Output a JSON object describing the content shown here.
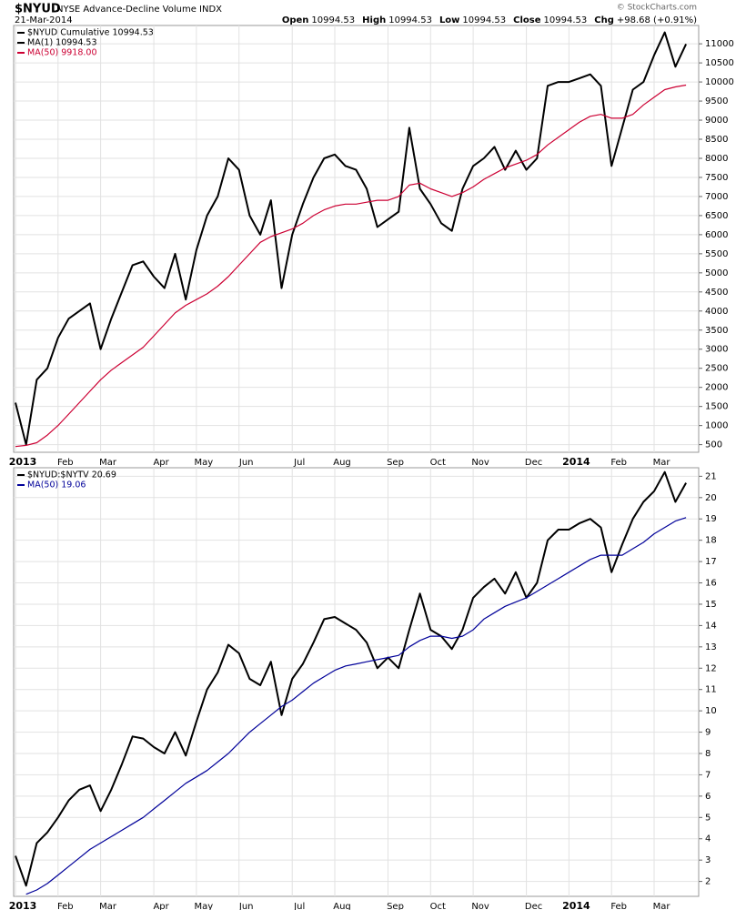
{
  "header": {
    "symbol": "$NYUD",
    "name": "NYSE Advance-Decline Volume INDX",
    "date": "21-Mar-2014",
    "credit": "© StockCharts.com",
    "quote": [
      {
        "label": "Open",
        "value": "10994.53"
      },
      {
        "label": "High",
        "value": "10994.53"
      },
      {
        "label": "Low",
        "value": "10994.53"
      },
      {
        "label": "Close",
        "value": "10994.53"
      },
      {
        "label": "Chg",
        "value": "+98.68 (+0.91%)"
      }
    ]
  },
  "chart_data": [
    {
      "type": "line",
      "extra_legend": {
        "name": "MA(1) 10994.53",
        "color": "#000000"
      },
      "categories": [
        "2013",
        null,
        null,
        null,
        "Feb",
        null,
        null,
        null,
        "Mar",
        null,
        null,
        null,
        null,
        "Apr",
        null,
        null,
        null,
        "May",
        null,
        null,
        null,
        "Jun",
        null,
        null,
        null,
        null,
        "Jul",
        null,
        null,
        null,
        "Aug",
        null,
        null,
        null,
        null,
        "Sep",
        null,
        null,
        null,
        "Oct",
        null,
        null,
        null,
        "Nov",
        null,
        null,
        null,
        null,
        "Dec",
        null,
        null,
        null,
        "2014",
        null,
        null,
        null,
        "Feb",
        null,
        null,
        null,
        "Mar",
        null,
        null,
        null
      ],
      "series": [
        {
          "name": "$NYUD Cumulative 10994.53",
          "color": "#000000",
          "values": [
            1600,
            500,
            2200,
            2500,
            3300,
            3800,
            4000,
            4200,
            3000,
            3800,
            4500,
            5200,
            5300,
            4900,
            4600,
            5500,
            4300,
            5600,
            6500,
            7000,
            8000,
            7700,
            6500,
            6000,
            6900,
            4600,
            6000,
            6800,
            7500,
            8000,
            8100,
            7800,
            7700,
            7200,
            6200,
            6400,
            6600,
            8800,
            7200,
            6800,
            6300,
            6100,
            7200,
            7800,
            8000,
            8300,
            7700,
            8200,
            7700,
            8000,
            9900,
            10000,
            10000,
            10100,
            10200,
            9900,
            7800,
            8800,
            9800,
            10000,
            10700,
            11300,
            10400,
            10994.53
          ]
        },
        {
          "name": "MA(50) 9918.00",
          "color": "#cc0033",
          "values": [
            450,
            480,
            550,
            750,
            1000,
            1300,
            1600,
            1900,
            2200,
            2450,
            2650,
            2850,
            3050,
            3350,
            3650,
            3950,
            4150,
            4300,
            4450,
            4650,
            4900,
            5200,
            5500,
            5800,
            5950,
            6050,
            6150,
            6300,
            6500,
            6650,
            6750,
            6800,
            6800,
            6850,
            6900,
            6900,
            7000,
            7300,
            7350,
            7200,
            7100,
            7000,
            7100,
            7250,
            7450,
            7600,
            7750,
            7850,
            7950,
            8100,
            8350,
            8550,
            8750,
            8950,
            9100,
            9150,
            9050,
            9050,
            9150,
            9400,
            9600,
            9800,
            9870,
            9918
          ]
        }
      ],
      "ylim": [
        300,
        11480
      ],
      "yticks": [
        500,
        1000,
        1500,
        2000,
        2500,
        3000,
        3500,
        4000,
        4500,
        5000,
        5500,
        6000,
        6500,
        7000,
        7500,
        8000,
        8500,
        9000,
        9500,
        10000,
        10500,
        11000
      ],
      "grid": true
    },
    {
      "type": "line",
      "categories": [
        "2013",
        null,
        null,
        null,
        "Feb",
        null,
        null,
        null,
        "Mar",
        null,
        null,
        null,
        null,
        "Apr",
        null,
        null,
        null,
        "May",
        null,
        null,
        null,
        "Jun",
        null,
        null,
        null,
        null,
        "Jul",
        null,
        null,
        null,
        "Aug",
        null,
        null,
        null,
        null,
        "Sep",
        null,
        null,
        null,
        "Oct",
        null,
        null,
        null,
        "Nov",
        null,
        null,
        null,
        null,
        "Dec",
        null,
        null,
        null,
        "2014",
        null,
        null,
        null,
        "Feb",
        null,
        null,
        null,
        "Mar",
        null,
        null,
        null
      ],
      "series": [
        {
          "name": "$NYUD:$NYTV 20.69",
          "color": "#000000",
          "values": [
            3.2,
            1.8,
            3.8,
            4.3,
            5.0,
            5.8,
            6.3,
            6.5,
            5.3,
            6.3,
            7.5,
            8.8,
            8.7,
            8.3,
            8.0,
            9.0,
            7.9,
            9.5,
            11,
            11.8,
            13.1,
            12.7,
            11.5,
            11.2,
            12.3,
            9.8,
            11.5,
            12.2,
            13.2,
            14.3,
            14.4,
            14.1,
            13.8,
            13.2,
            12.0,
            12.5,
            12.0,
            13.8,
            15.5,
            13.8,
            13.5,
            12.9,
            13.8,
            15.3,
            15.8,
            16.2,
            15.5,
            16.5,
            15.3,
            16.0,
            18.0,
            18.5,
            18.5,
            18.8,
            19.0,
            18.6,
            16.5,
            17.8,
            19.0,
            19.8,
            20.3,
            21.2,
            19.8,
            20.69
          ]
        },
        {
          "name": "MA(50) 19.06",
          "color": "#000099",
          "values": [
            null,
            1.4,
            1.6,
            1.9,
            2.3,
            2.7,
            3.1,
            3.5,
            3.8,
            4.1,
            4.4,
            4.7,
            5.0,
            5.4,
            5.8,
            6.2,
            6.6,
            6.9,
            7.2,
            7.6,
            8.0,
            8.5,
            9.0,
            9.4,
            9.8,
            10.2,
            10.5,
            10.9,
            11.3,
            11.6,
            11.9,
            12.1,
            12.2,
            12.3,
            12.4,
            12.5,
            12.6,
            13.0,
            13.3,
            13.5,
            13.5,
            13.4,
            13.5,
            13.8,
            14.3,
            14.6,
            14.9,
            15.1,
            15.3,
            15.6,
            15.9,
            16.2,
            16.5,
            16.8,
            17.1,
            17.3,
            17.3,
            17.3,
            17.6,
            17.9,
            18.3,
            18.6,
            18.9,
            19.06
          ]
        }
      ],
      "ylim": [
        1.3,
        21.4
      ],
      "yticks": [
        2,
        3,
        4,
        5,
        6,
        7,
        8,
        9,
        10,
        11,
        12,
        13,
        14,
        15,
        16,
        17,
        18,
        19,
        20,
        21
      ],
      "grid": true
    }
  ]
}
